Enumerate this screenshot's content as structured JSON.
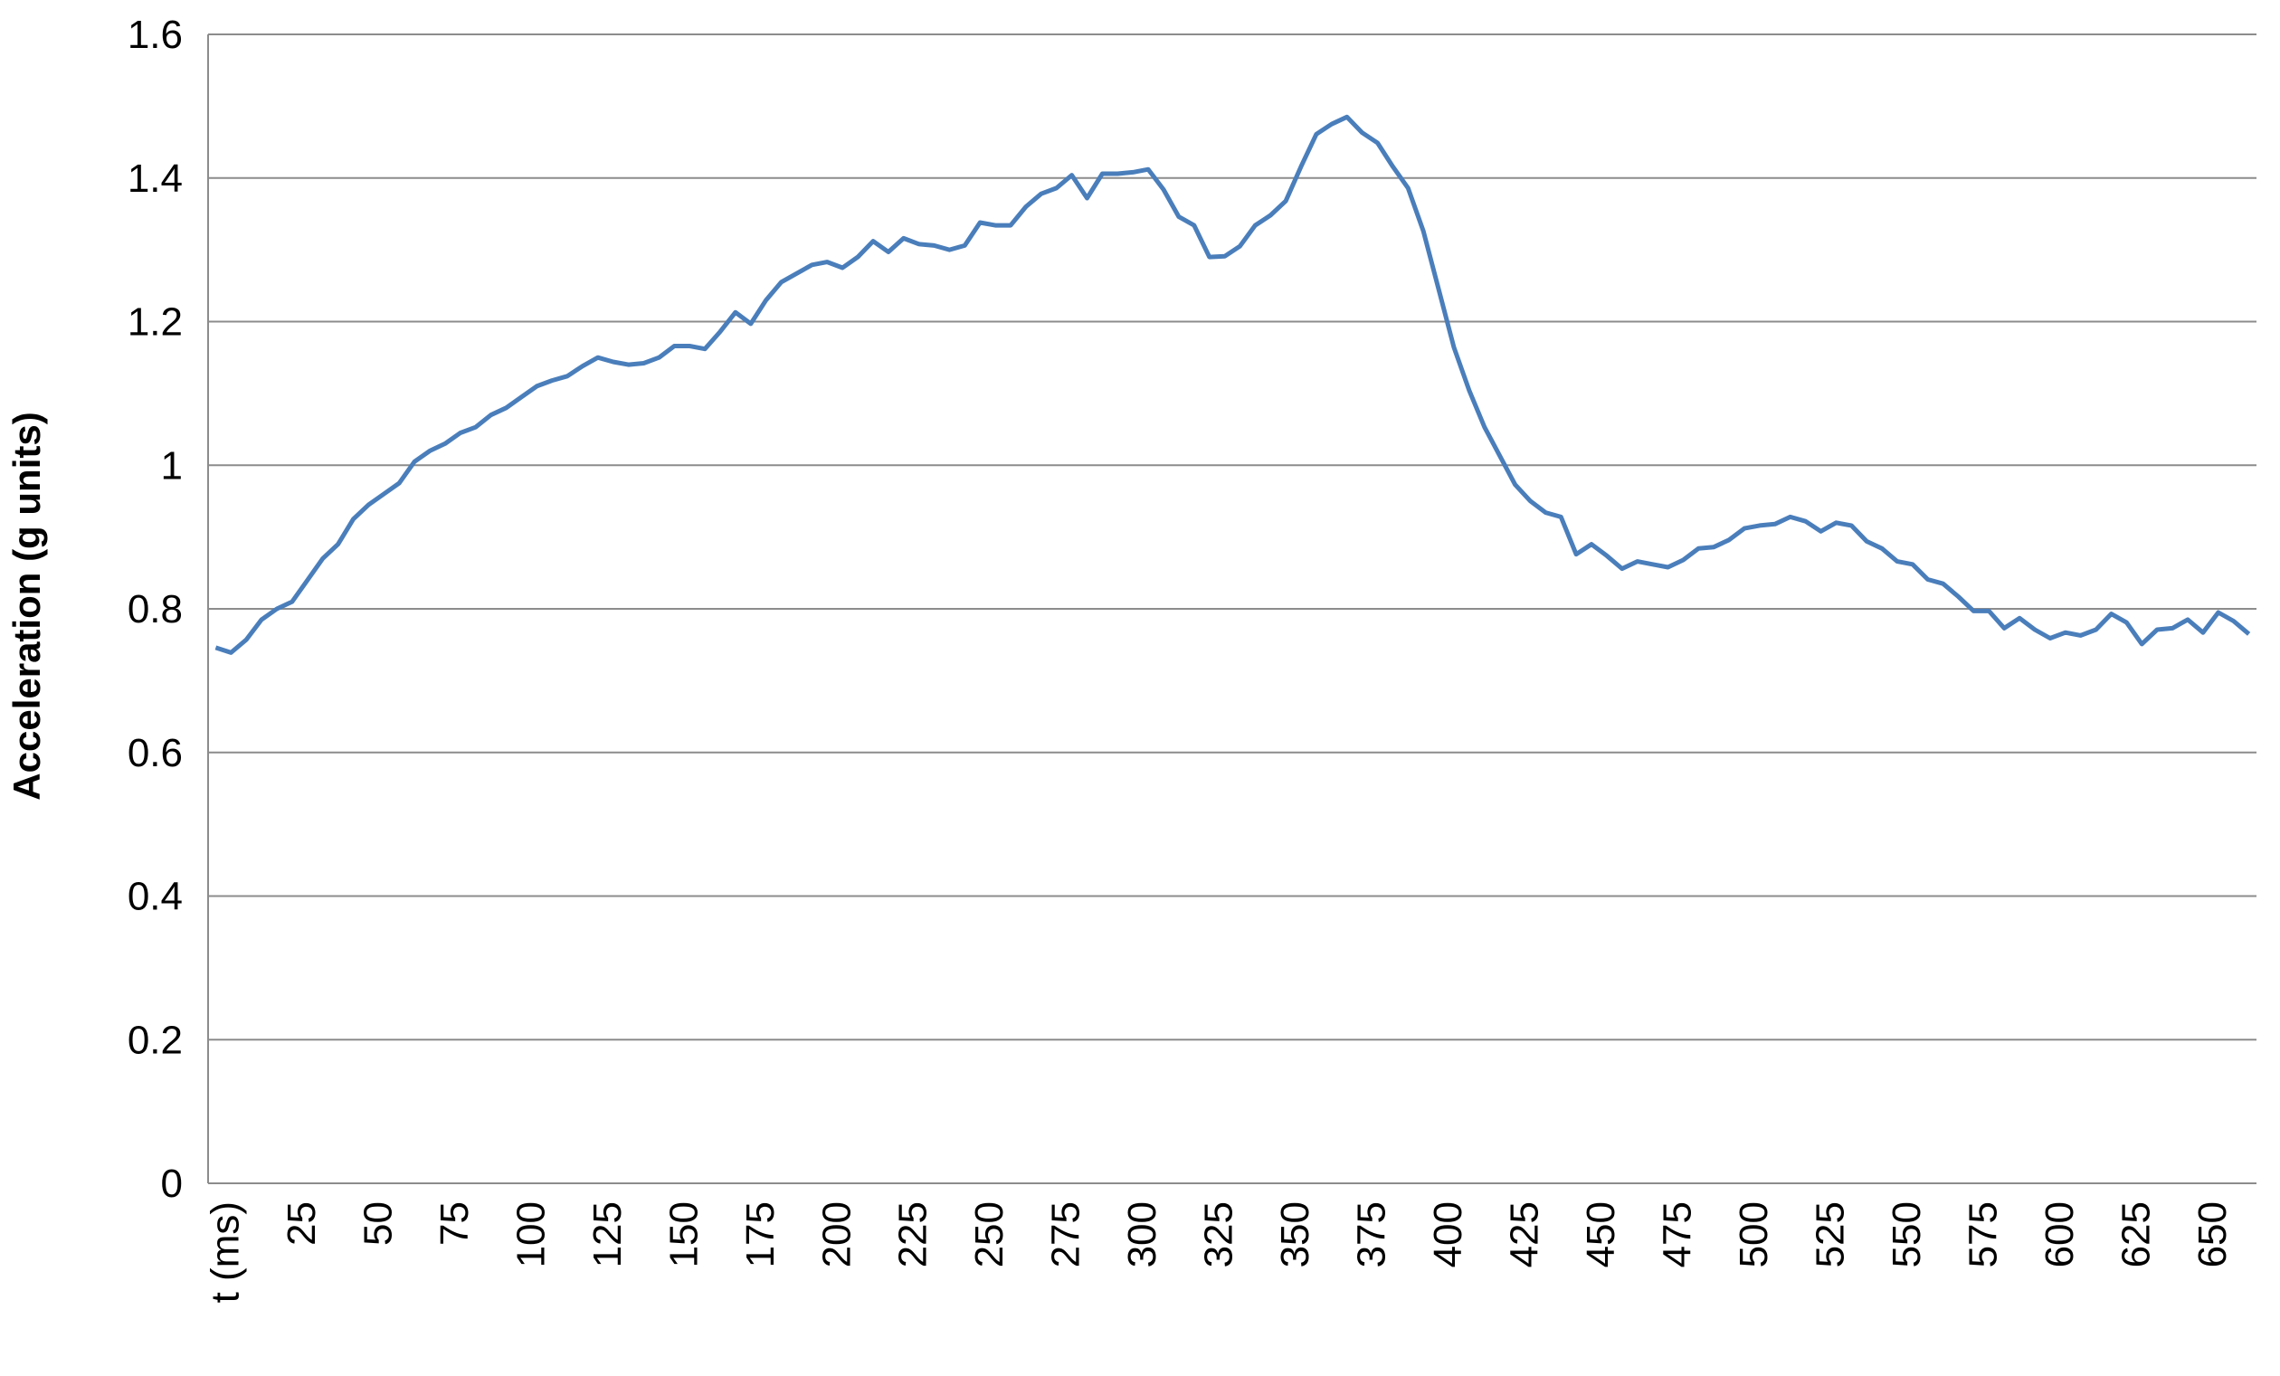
{
  "chart_data": {
    "type": "line",
    "y_label": "Acceleration (g units)",
    "categories": [
      "t (ms)",
      null,
      null,
      null,
      null,
      "25",
      null,
      null,
      null,
      null,
      "50",
      null,
      null,
      null,
      null,
      "75",
      null,
      null,
      null,
      null,
      "100",
      null,
      null,
      null,
      null,
      "125",
      null,
      null,
      null,
      null,
      "150",
      null,
      null,
      null,
      null,
      "175",
      null,
      null,
      null,
      null,
      "200",
      null,
      null,
      null,
      null,
      "225",
      null,
      null,
      null,
      null,
      "250",
      null,
      null,
      null,
      null,
      "275",
      null,
      null,
      null,
      null,
      "300",
      null,
      null,
      null,
      null,
      "325",
      null,
      null,
      null,
      null,
      "350",
      null,
      null,
      null,
      null,
      "375",
      null,
      null,
      null,
      null,
      "400",
      null,
      null,
      null,
      null,
      "425",
      null,
      null,
      null,
      null,
      "450",
      null,
      null,
      null,
      null,
      "475",
      null,
      null,
      null,
      null,
      "500",
      null,
      null,
      null,
      null,
      "525",
      null,
      null,
      null,
      null,
      "550",
      null,
      null,
      null,
      null,
      "575",
      null,
      null,
      null,
      null,
      "600",
      null,
      null,
      null,
      null,
      "625",
      null,
      null,
      null,
      null,
      "650",
      null,
      null,
      null
    ],
    "values": [
      0.746,
      0.739,
      0.757,
      0.785,
      0.8,
      0.81,
      0.84,
      0.87,
      0.89,
      0.925,
      0.945,
      0.96,
      0.975,
      1.005,
      1.02,
      1.03,
      1.045,
      1.053,
      1.07,
      1.08,
      1.095,
      1.11,
      1.118,
      1.124,
      1.138,
      1.15,
      1.144,
      1.14,
      1.142,
      1.15,
      1.166,
      1.166,
      1.162,
      1.186,
      1.213,
      1.197,
      1.23,
      1.255,
      1.267,
      1.279,
      1.283,
      1.275,
      1.29,
      1.312,
      1.297,
      1.316,
      1.308,
      1.306,
      1.3,
      1.306,
      1.338,
      1.334,
      1.334,
      1.36,
      1.378,
      1.386,
      1.404,
      1.372,
      1.406,
      1.406,
      1.408,
      1.412,
      1.384,
      1.346,
      1.334,
      1.29,
      1.291,
      1.305,
      1.334,
      1.348,
      1.368,
      1.416,
      1.461,
      1.475,
      1.485,
      1.463,
      1.449,
      1.416,
      1.386,
      1.326,
      1.245,
      1.164,
      1.104,
      1.053,
      1.013,
      0.973,
      0.95,
      0.934,
      0.928,
      0.876,
      0.89,
      0.874,
      0.856,
      0.866,
      0.862,
      0.858,
      0.868,
      0.884,
      0.886,
      0.896,
      0.912,
      0.916,
      0.918,
      0.928,
      0.922,
      0.908,
      0.92,
      0.916,
      0.894,
      0.884,
      0.866,
      0.862,
      0.841,
      0.835,
      0.817,
      0.797,
      0.797,
      0.773,
      0.787,
      0.771,
      0.759,
      0.767,
      0.763,
      0.771,
      0.793,
      0.781,
      0.751,
      0.771,
      0.773,
      0.785,
      0.767,
      0.795,
      0.783,
      0.765
    ],
    "color": "#4a7ebb",
    "ylim": [
      0,
      1.6
    ],
    "yticks": [
      0,
      0.2,
      0.4,
      0.6,
      0.8,
      1,
      1.2,
      1.4,
      1.6
    ],
    "grid": true
  }
}
